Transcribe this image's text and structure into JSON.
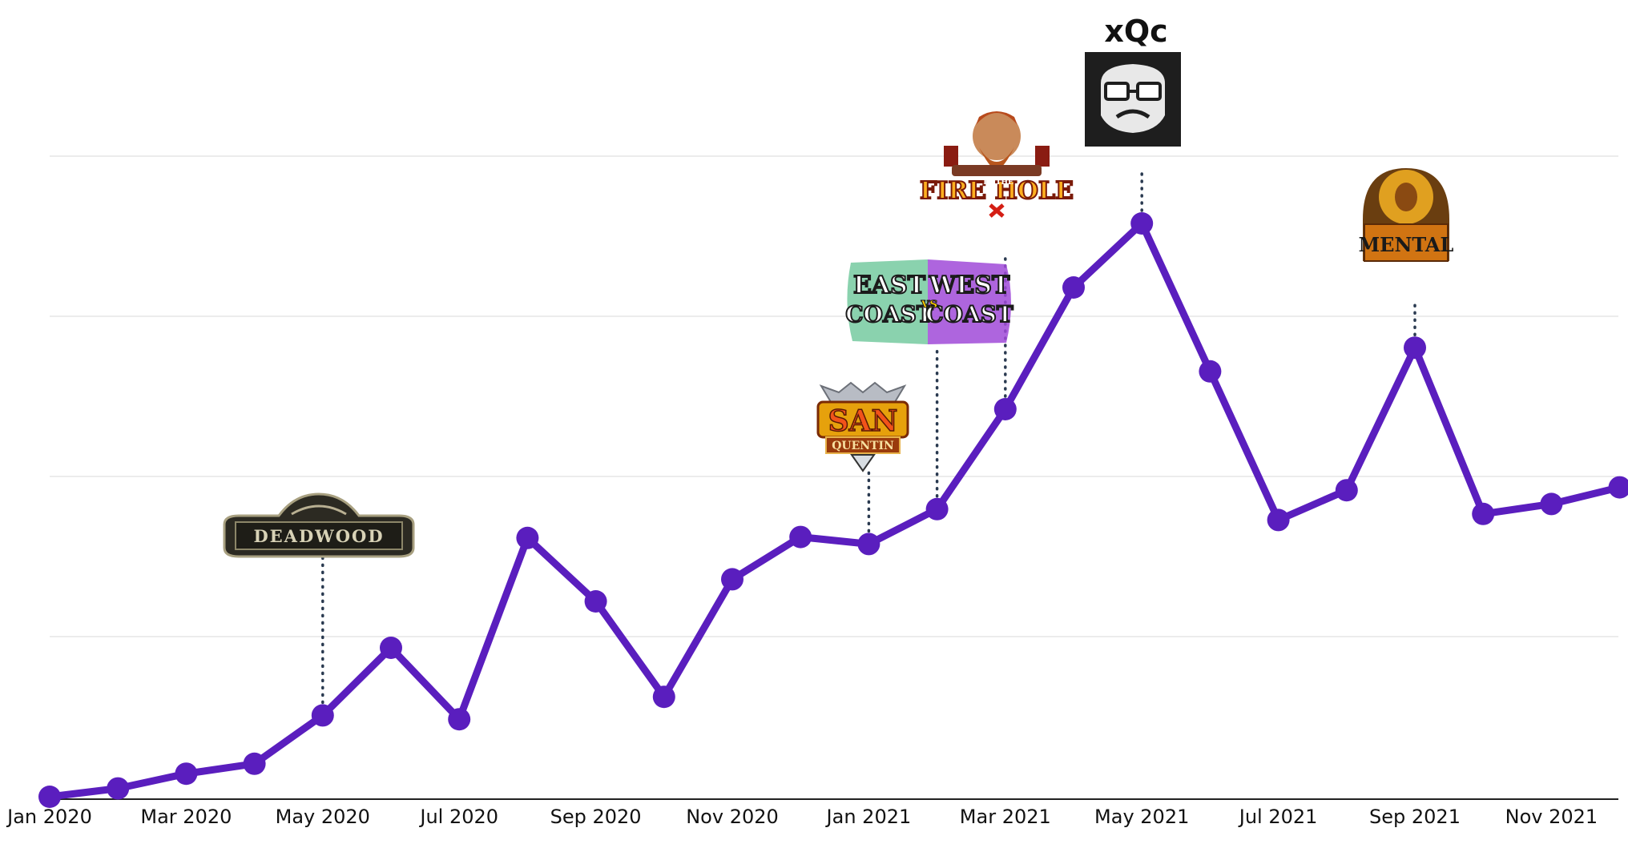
{
  "chart_data": {
    "type": "line",
    "x": [
      "Jan 2020",
      "Feb 2020",
      "Mar 2020",
      "Apr 2020",
      "May 2020",
      "Jun 2020",
      "Jul 2020",
      "Aug 2020",
      "Sep 2020",
      "Oct 2020",
      "Nov 2020",
      "Dec 2020",
      "Jan 2021",
      "Feb 2021",
      "Mar 2021",
      "Apr 2021",
      "May 2021",
      "Jun 2021",
      "Jul 2021",
      "Aug 2021",
      "Sep 2021",
      "Oct 2021",
      "Nov 2021",
      "Dec 2021"
    ],
    "tick_labels": [
      "Jan 2020",
      "Mar 2020",
      "May 2020",
      "Jul 2020",
      "Sep 2020",
      "Nov 2020",
      "Jan 2021",
      "Mar 2021",
      "May 2021",
      "Jul 2021",
      "Sep 2021",
      "Nov 2021"
    ],
    "series": [
      {
        "values": [
          0,
          2.6,
          7.2,
          10.3,
          25.4,
          46.5,
          24.2,
          80.8,
          61.0,
          31.2,
          67.9,
          81.1,
          78.9,
          89.8,
          121.0,
          159.0,
          179.0,
          132.8,
          86.4,
          95.7,
          140.2,
          88.3,
          91.4,
          96.6
        ]
      }
    ],
    "ylim": [
      0,
      200
    ],
    "y_gridlines": [
      50,
      100,
      150,
      200
    ],
    "grid": true,
    "yticks_visible": false,
    "line_color": "#5a1ebe",
    "annotations": [
      {
        "x": "May 2020",
        "y": 25.4,
        "kind": "logo",
        "label": "DEADWOOD"
      },
      {
        "x": "Jan 2021",
        "y": 78.9,
        "kind": "logo",
        "label": "SAN QUENTIN"
      },
      {
        "x": "Feb 2021",
        "y": 89.8,
        "kind": "logo",
        "label": "EAST COAST vs WEST COAST"
      },
      {
        "x": "Mar 2021",
        "y": 121.0,
        "kind": "logo",
        "label": "FIRE IN THE HOLE"
      },
      {
        "x": "May 2021",
        "y": 179.0,
        "kind": "logo+text",
        "label": "xQc"
      },
      {
        "x": "Sep 2021",
        "y": 140.2,
        "kind": "logo",
        "label": "MENTAL"
      }
    ]
  }
}
